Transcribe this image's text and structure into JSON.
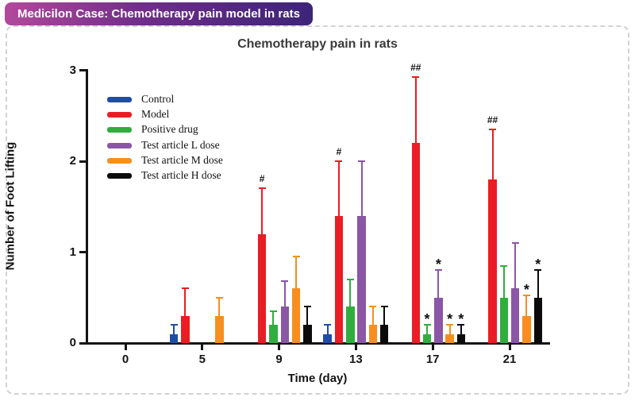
{
  "banner": {
    "title": "Medicilon Case: Chemotherapy pain model in rats",
    "gradient_left": "#b2499c",
    "gradient_mid": "#6f2d89",
    "gradient_right": "#3c2478",
    "text_color": "#ffffff"
  },
  "chart_data": {
    "type": "bar",
    "title": "Chemotherapy pain in rats",
    "xlabel": "Time (day)",
    "ylabel": "Number of Foot Lifting",
    "ylim": [
      0,
      3
    ],
    "yticks": [
      0,
      1,
      2,
      3
    ],
    "categories": [
      "0",
      "5",
      "9",
      "13",
      "17",
      "21"
    ],
    "grid": false,
    "legend_position": "upper-left-inside",
    "has_upper_error_bars": true,
    "series": [
      {
        "name": "Control",
        "color": "#1f4ca8",
        "values": [
          0,
          0.1,
          0,
          0.1,
          0,
          0
        ],
        "errors": [
          0,
          0.1,
          0,
          0.1,
          0,
          0
        ],
        "annotations": [
          "",
          "",
          "",
          "",
          "",
          ""
        ]
      },
      {
        "name": "Model",
        "color": "#ec1c24",
        "values": [
          0,
          0.3,
          1.2,
          1.4,
          2.2,
          1.8
        ],
        "errors": [
          0,
          0.3,
          0.5,
          0.6,
          0.73,
          0.55
        ],
        "annotations": [
          "",
          "",
          "#",
          "#",
          "##",
          "##"
        ]
      },
      {
        "name": "Positive drug",
        "color": "#2fae3f",
        "values": [
          0,
          0,
          0.2,
          0.4,
          0.1,
          0.5
        ],
        "errors": [
          0,
          0,
          0.15,
          0.3,
          0.1,
          0.35
        ],
        "annotations": [
          "",
          "",
          "",
          "",
          "*",
          ""
        ]
      },
      {
        "name": "Test article L dose",
        "color": "#8a56a5",
        "values": [
          0,
          0,
          0.4,
          1.4,
          0.5,
          0.6
        ],
        "errors": [
          0,
          0,
          0.28,
          0.6,
          0.3,
          0.5
        ],
        "annotations": [
          "",
          "",
          "",
          "",
          "*",
          ""
        ]
      },
      {
        "name": "Test article M dose",
        "color": "#f78e1e",
        "values": [
          0,
          0.3,
          0.6,
          0.2,
          0.1,
          0.3
        ],
        "errors": [
          0,
          0.2,
          0.35,
          0.2,
          0.1,
          0.22
        ],
        "annotations": [
          "",
          "",
          "",
          "",
          "*",
          "*"
        ]
      },
      {
        "name": "Test article H dose",
        "color": "#0b0b0b",
        "values": [
          0,
          0,
          0.2,
          0.2,
          0.1,
          0.5
        ],
        "errors": [
          0,
          0,
          0.2,
          0.2,
          0.1,
          0.3
        ],
        "annotations": [
          "",
          "",
          "",
          "",
          "*",
          "*"
        ]
      }
    ]
  }
}
